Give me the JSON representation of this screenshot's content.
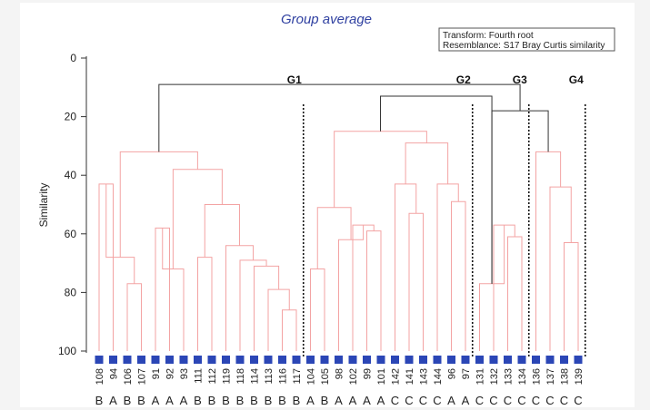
{
  "chart_data": {
    "type": "dendrogram",
    "title": "Group average",
    "ylabel": "Similarity",
    "ylim": [
      0,
      100
    ],
    "yticks": [
      0,
      20,
      40,
      60,
      80,
      100
    ],
    "legend": {
      "placement": "top-right",
      "transform": "Transform: Fourth root",
      "resemblance": "Resemblance: S17 Bray Curtis similarity"
    },
    "leaves": [
      {
        "id": "108",
        "group": "B"
      },
      {
        "id": "94",
        "group": "A"
      },
      {
        "id": "106",
        "group": "B"
      },
      {
        "id": "107",
        "group": "B"
      },
      {
        "id": "91",
        "group": "A"
      },
      {
        "id": "92",
        "group": "A"
      },
      {
        "id": "93",
        "group": "A"
      },
      {
        "id": "111",
        "group": "B"
      },
      {
        "id": "112",
        "group": "B"
      },
      {
        "id": "119",
        "group": "B"
      },
      {
        "id": "118",
        "group": "B"
      },
      {
        "id": "114",
        "group": "B"
      },
      {
        "id": "113",
        "group": "B"
      },
      {
        "id": "116",
        "group": "B"
      },
      {
        "id": "117",
        "group": "B"
      },
      {
        "id": "104",
        "group": "A"
      },
      {
        "id": "105",
        "group": "B"
      },
      {
        "id": "98",
        "group": "A"
      },
      {
        "id": "102",
        "group": "A"
      },
      {
        "id": "99",
        "group": "A"
      },
      {
        "id": "101",
        "group": "A"
      },
      {
        "id": "142",
        "group": "C"
      },
      {
        "id": "141",
        "group": "C"
      },
      {
        "id": "143",
        "group": "C"
      },
      {
        "id": "144",
        "group": "C"
      },
      {
        "id": "96",
        "group": "A"
      },
      {
        "id": "97",
        "group": "A"
      },
      {
        "id": "131",
        "group": "C"
      },
      {
        "id": "132",
        "group": "C"
      },
      {
        "id": "133",
        "group": "C"
      },
      {
        "id": "134",
        "group": "C"
      },
      {
        "id": "136",
        "group": "C"
      },
      {
        "id": "137",
        "group": "C"
      },
      {
        "id": "138",
        "group": "C"
      },
      {
        "id": "139",
        "group": "C"
      }
    ],
    "merges": [
      {
        "a": 0,
        "b": 1,
        "sim": 43
      },
      {
        "a": 2,
        "b": 3,
        "sim": 77
      },
      {
        "a": 36,
        "b": 35,
        "sim": 68
      },
      {
        "a": 4,
        "b": 5,
        "sim": 58
      },
      {
        "a": 38,
        "b": 6,
        "sim": 72
      },
      {
        "a": 13,
        "b": 14,
        "sim": 86
      },
      {
        "a": 12,
        "b": 40,
        "sim": 79
      },
      {
        "a": 11,
        "b": 41,
        "sim": 71
      },
      {
        "a": 10,
        "b": 42,
        "sim": 69
      },
      {
        "a": 9,
        "b": 43,
        "sim": 64
      },
      {
        "a": 7,
        "b": 8,
        "sim": 68
      },
      {
        "a": 45,
        "b": 44,
        "sim": 50
      },
      {
        "a": 39,
        "b": 46,
        "sim": 38
      },
      {
        "a": 37,
        "b": 47,
        "sim": 32
      },
      {
        "a": 15,
        "b": 16,
        "sim": 72
      },
      {
        "a": 19,
        "b": 20,
        "sim": 59
      },
      {
        "a": 18,
        "b": 50,
        "sim": 57
      },
      {
        "a": 17,
        "b": 51,
        "sim": 62
      },
      {
        "a": 49,
        "b": 52,
        "sim": 51
      },
      {
        "a": 22,
        "b": 23,
        "sim": 53
      },
      {
        "a": 21,
        "b": 54,
        "sim": 43
      },
      {
        "a": 25,
        "b": 26,
        "sim": 49
      },
      {
        "a": 24,
        "b": 56,
        "sim": 43
      },
      {
        "a": 55,
        "b": 57,
        "sim": 29
      },
      {
        "a": 53,
        "b": 58,
        "sim": 25
      },
      {
        "a": 29,
        "b": 30,
        "sim": 61
      },
      {
        "a": 28,
        "b": 60,
        "sim": 57
      },
      {
        "a": 27,
        "b": 61,
        "sim": 77
      },
      {
        "a": 59,
        "b": 62,
        "sim": 13
      },
      {
        "a": 33,
        "b": 34,
        "sim": 63
      },
      {
        "a": 32,
        "b": 64,
        "sim": 44
      },
      {
        "a": 31,
        "b": 65,
        "sim": 32
      },
      {
        "a": 62,
        "b": 66,
        "sim": 18
      },
      {
        "a": 48,
        "b": 67,
        "sim": 9
      }
    ],
    "groups": [
      {
        "name": "G1",
        "after_leaf": 14
      },
      {
        "name": "G2",
        "after_leaf": 26
      },
      {
        "name": "G3",
        "after_leaf": 30
      },
      {
        "name": "G4",
        "after_leaf": 34
      }
    ],
    "colors": {
      "within_group": "#f3a3a3",
      "between_groups": "#333333",
      "markers": "#2b46b6"
    }
  }
}
